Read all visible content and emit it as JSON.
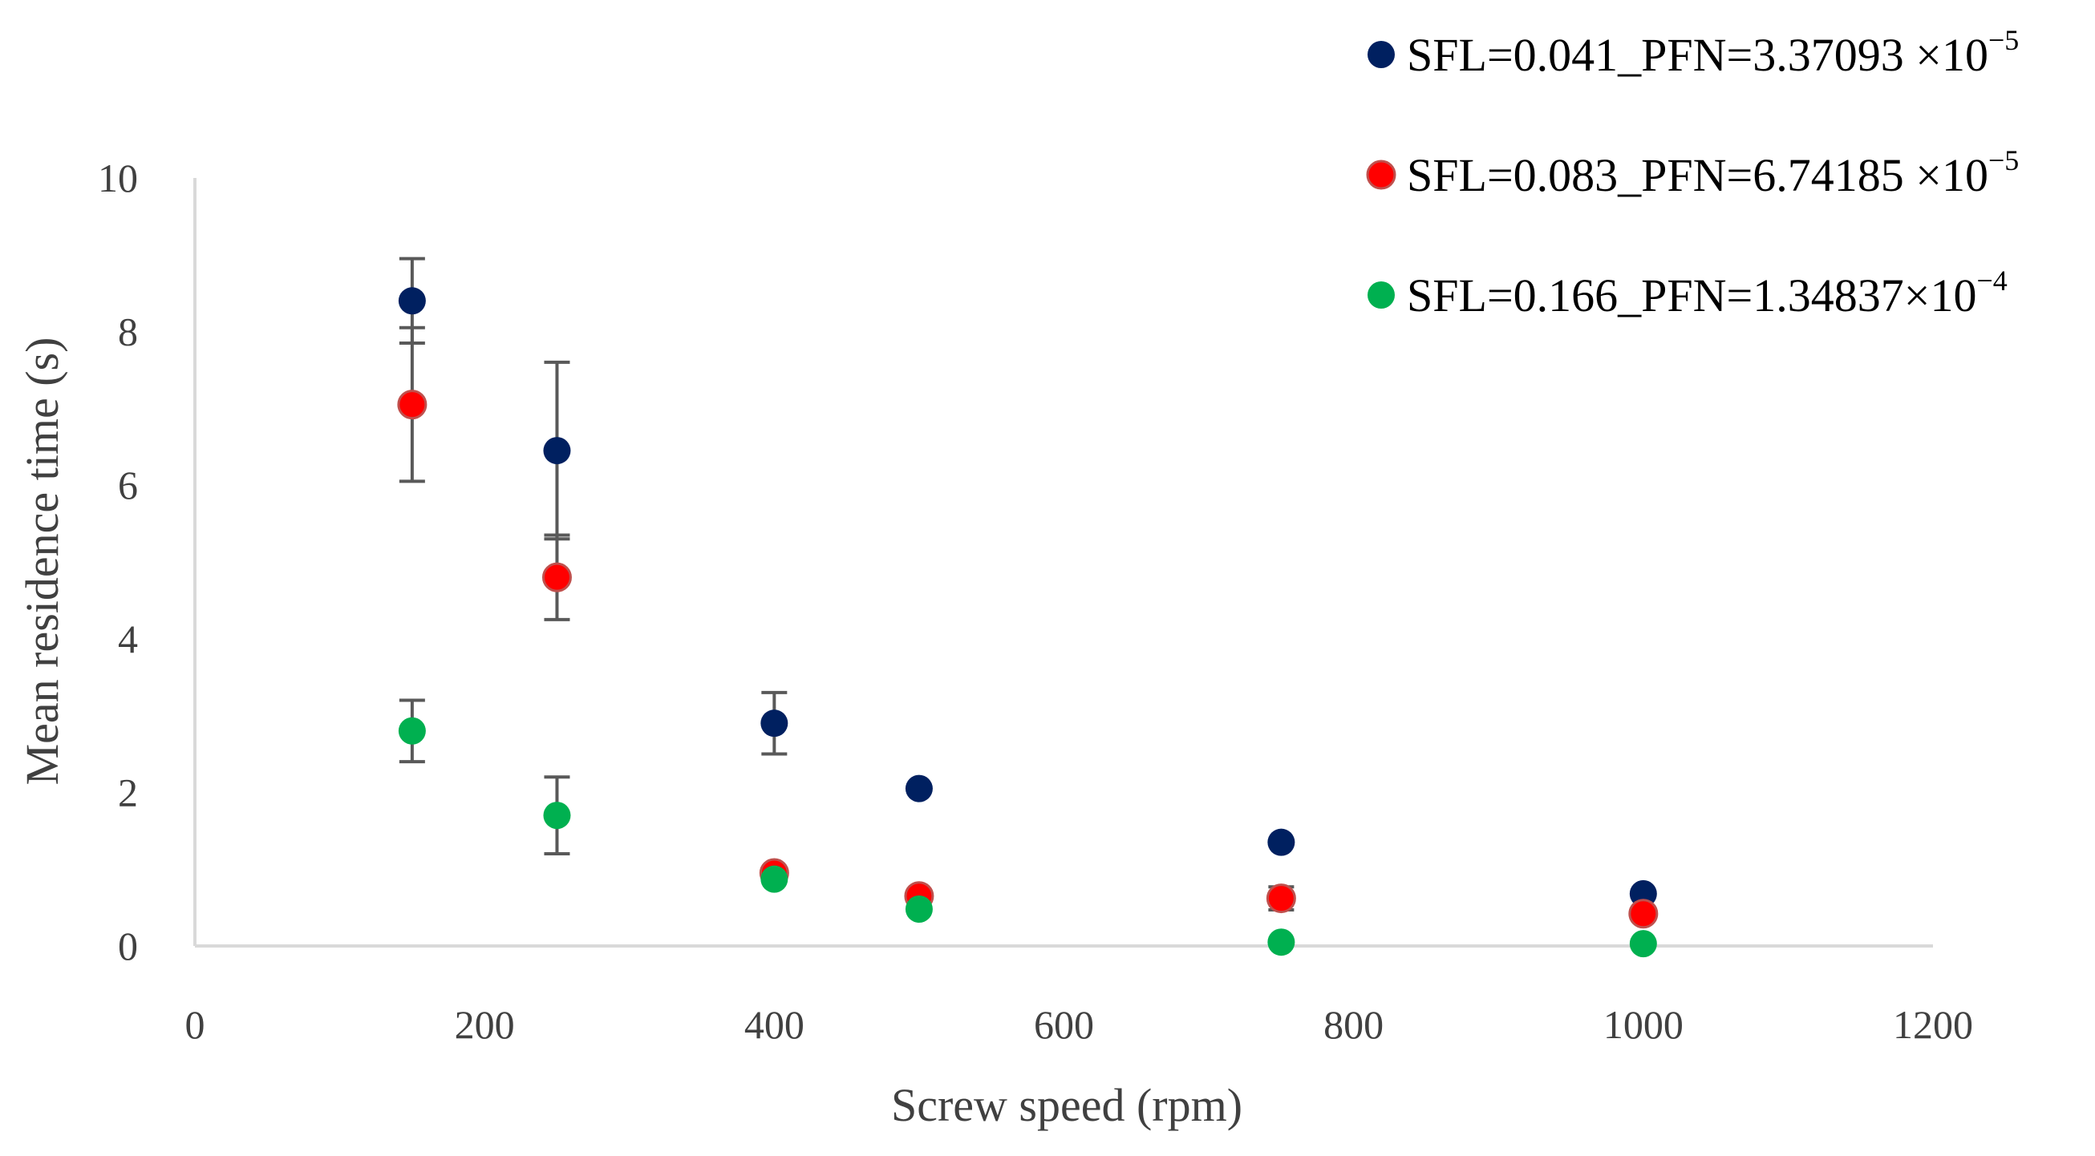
{
  "chart_data": {
    "type": "scatter",
    "title": "",
    "xlabel": "Screw speed (rpm)",
    "ylabel": "Mean residence time (s)",
    "xlim": [
      0,
      1200
    ],
    "ylim": [
      0,
      10
    ],
    "xticks": [
      0,
      200,
      400,
      600,
      800,
      1000,
      1200
    ],
    "yticks": [
      0,
      2,
      4,
      6,
      8,
      10
    ],
    "grid": false,
    "legend_position": "top-right",
    "series": [
      {
        "name": "SFL=0.041_PFN=3.37093 ×10",
        "name_exp": "−5",
        "color": "#002060",
        "x": [
          150,
          250,
          400,
          500,
          750,
          1000
        ],
        "y": [
          8.4,
          6.45,
          2.9,
          2.05,
          1.35,
          0.68
        ],
        "err": [
          0.55,
          1.15,
          0.4,
          0,
          0,
          0
        ]
      },
      {
        "name": "SFL=0.083_PFN=6.74185 ×10",
        "name_exp": "−5",
        "color": "#ff0000",
        "x": [
          150,
          250,
          400,
          500,
          750,
          1000
        ],
        "y": [
          7.05,
          4.8,
          0.95,
          0.65,
          0.62,
          0.42
        ],
        "err": [
          1.0,
          0.55,
          0,
          0,
          0.15,
          0
        ]
      },
      {
        "name": "SFL=0.166_PFN=1.34837×10",
        "name_exp": "−4",
        "color": "#00b050",
        "x": [
          150,
          250,
          400,
          500,
          750,
          1000
        ],
        "y": [
          2.8,
          1.7,
          0.87,
          0.48,
          0.05,
          0.03
        ],
        "err": [
          0.4,
          0.5,
          0,
          0,
          0,
          0
        ]
      }
    ]
  }
}
